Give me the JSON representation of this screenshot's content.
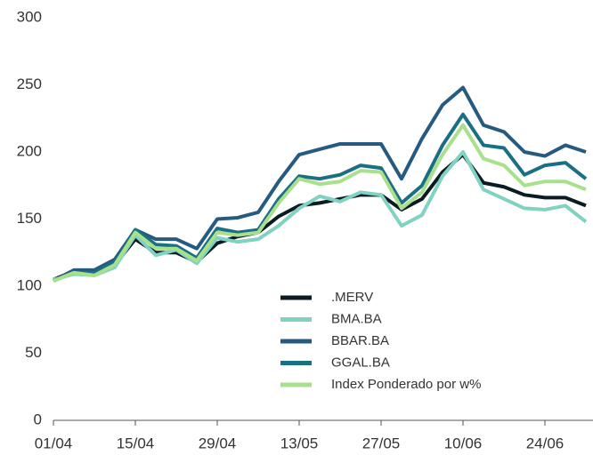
{
  "chart_data": {
    "type": "line",
    "categories": [
      "01/04",
      null,
      null,
      null,
      "15/04",
      null,
      null,
      null,
      "29/04",
      null,
      null,
      null,
      "13/05",
      null,
      null,
      null,
      "27/05",
      null,
      null,
      null,
      "10/06",
      null,
      null,
      null,
      "24/06",
      null,
      null
    ],
    "series": [
      {
        "name": ".MERV",
        "color": "#0b1b24",
        "values": [
          105,
          111,
          110,
          116,
          135,
          125,
          125,
          118,
          132,
          137,
          140,
          152,
          160,
          162,
          165,
          168,
          168,
          157,
          165,
          185,
          198,
          177,
          174,
          168,
          166,
          166,
          160
        ]
      },
      {
        "name": "BMA.BA",
        "color": "#7fd3c0",
        "values": [
          105,
          109,
          108,
          114,
          138,
          123,
          127,
          117,
          136,
          133,
          135,
          145,
          158,
          167,
          163,
          170,
          168,
          145,
          153,
          182,
          200,
          172,
          165,
          158,
          157,
          160,
          148
        ]
      },
      {
        "name": "BBAR.BA",
        "color": "#265a80",
        "values": [
          104,
          112,
          112,
          120,
          142,
          135,
          135,
          128,
          150,
          151,
          155,
          178,
          198,
          202,
          206,
          206,
          206,
          180,
          210,
          235,
          248,
          220,
          215,
          200,
          197,
          205,
          200
        ]
      },
      {
        "name": "GGAL.BA",
        "color": "#1a6f85",
        "values": [
          104,
          110,
          110,
          118,
          142,
          131,
          130,
          121,
          143,
          140,
          142,
          165,
          182,
          180,
          183,
          190,
          188,
          162,
          175,
          205,
          228,
          205,
          203,
          183,
          190,
          192,
          180
        ]
      },
      {
        "name": "Index Ponderado por w%",
        "color": "#a8e08c",
        "values": [
          104,
          110,
          108,
          116,
          140,
          128,
          128,
          119,
          140,
          138,
          140,
          162,
          180,
          176,
          178,
          186,
          185,
          158,
          170,
          198,
          220,
          195,
          190,
          175,
          178,
          178,
          172
        ]
      }
    ],
    "ylim": [
      0,
      300
    ],
    "yticks": [
      0,
      50,
      100,
      150,
      200,
      250,
      300
    ],
    "grid": false
  }
}
